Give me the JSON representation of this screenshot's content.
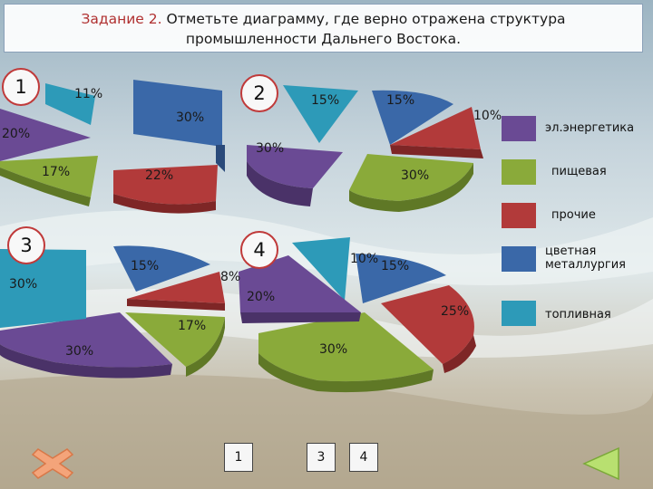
{
  "task": {
    "label": "Задание 2.",
    "line1": "Отметьте диаграмму, где верно отражена структура",
    "line2": "промышленности Дальнего Востока."
  },
  "colors": {
    "el_energetika": "#6a4a94",
    "pishchevaya": "#8aaa3a",
    "prochie": "#b23a3a",
    "tsvetnaya_metallurgiya": "#3a68a8",
    "toplivnaya": "#2d9ab8"
  },
  "legend": [
    {
      "key": "el_energetika",
      "label": "эл.энергетика"
    },
    {
      "key": "pishchevaya",
      "label": "пищевая"
    },
    {
      "key": "prochie",
      "label": "прочие"
    },
    {
      "key": "tsvetnaya_metallurgiya",
      "label": "цветная металлургия"
    },
    {
      "key": "toplivnaya",
      "label": "топливная"
    }
  ],
  "diagrams": [
    {
      "number": "1",
      "slices": [
        {
          "key": "toplivnaya",
          "label": "11%"
        },
        {
          "key": "tsvetnaya_metallurgiya",
          "label": "30%"
        },
        {
          "key": "prochie",
          "label": "22%"
        },
        {
          "key": "pishchevaya",
          "label": "17%"
        },
        {
          "key": "el_energetika",
          "label": "20%"
        }
      ]
    },
    {
      "number": "2",
      "slices": [
        {
          "key": "toplivnaya",
          "label": "15%"
        },
        {
          "key": "tsvetnaya_metallurgiya",
          "label": "15%"
        },
        {
          "key": "prochie",
          "label": "10%"
        },
        {
          "key": "pishchevaya",
          "label": "30%"
        },
        {
          "key": "el_energetika",
          "label": "30%"
        }
      ]
    },
    {
      "number": "3",
      "slices": [
        {
          "key": "tsvetnaya_metallurgiya",
          "label": "15%"
        },
        {
          "key": "prochie",
          "label": "8%"
        },
        {
          "key": "pishchevaya",
          "label": "17%"
        },
        {
          "key": "el_energetika",
          "label": "30%"
        },
        {
          "key": "toplivnaya",
          "label": "30%"
        }
      ]
    },
    {
      "number": "4",
      "slices": [
        {
          "key": "toplivnaya",
          "label": "10%"
        },
        {
          "key": "tsvetnaya_metallurgiya",
          "label": "15%"
        },
        {
          "key": "prochie",
          "label": "25%"
        },
        {
          "key": "pishchevaya",
          "label": "30%"
        },
        {
          "key": "el_energetika",
          "label": "20%"
        }
      ]
    }
  ],
  "answers": [
    "1",
    "3",
    "4"
  ],
  "nav": {
    "close_icon": "close-x-icon",
    "back_icon": "triangle-back-icon"
  }
}
